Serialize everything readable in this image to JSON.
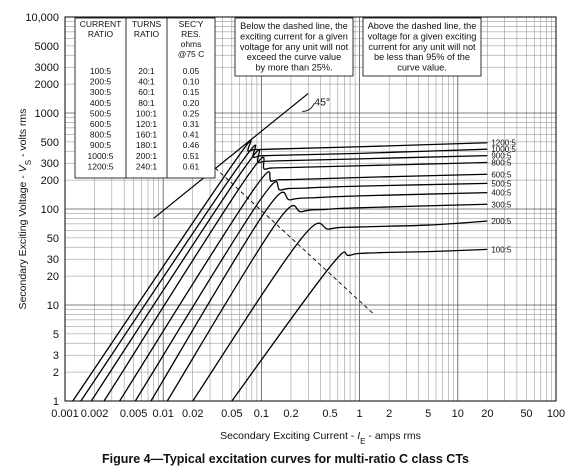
{
  "chart_data": {
    "type": "line",
    "xlabel_prefix": "Secondary Exciting Current - ",
    "xlabel_var": "I",
    "xlabel_sub": "E",
    "xlabel_suffix": " - amps rms",
    "ylabel_prefix": "Secondary Exciting Voltage - ",
    "ylabel_var": "V",
    "ylabel_sub": "S",
    "ylabel_suffix": " - volts rms",
    "xscale": "log",
    "yscale": "log",
    "xlim": [
      0.001,
      100
    ],
    "ylim": [
      1,
      10000
    ],
    "grid": true,
    "x_ticks": [
      {
        "v": 0.001,
        "t": "0.001"
      },
      {
        "v": 0.002,
        "t": "0.002"
      },
      {
        "v": 0.005,
        "t": "0.005"
      },
      {
        "v": 0.01,
        "t": "0.01"
      },
      {
        "v": 0.02,
        "t": "0.02"
      },
      {
        "v": 0.05,
        "t": "0.05"
      },
      {
        "v": 0.1,
        "t": "0.1"
      },
      {
        "v": 0.2,
        "t": "0.2"
      },
      {
        "v": 0.5,
        "t": "0.5"
      },
      {
        "v": 1,
        "t": "1"
      },
      {
        "v": 2,
        "t": "2"
      },
      {
        "v": 5,
        "t": "5"
      },
      {
        "v": 10,
        "t": "10"
      },
      {
        "v": 20,
        "t": "20"
      },
      {
        "v": 50,
        "t": "50"
      },
      {
        "v": 100,
        "t": "100"
      }
    ],
    "y_ticks": [
      {
        "v": 1,
        "t": "1"
      },
      {
        "v": 2,
        "t": "2"
      },
      {
        "v": 3,
        "t": "3"
      },
      {
        "v": 5,
        "t": "5"
      },
      {
        "v": 10,
        "t": "10"
      },
      {
        "v": 20,
        "t": "20"
      },
      {
        "v": 30,
        "t": "30"
      },
      {
        "v": 50,
        "t": "50"
      },
      {
        "v": 100,
        "t": "100"
      },
      {
        "v": 200,
        "t": "200"
      },
      {
        "v": 300,
        "t": "300"
      },
      {
        "v": 500,
        "t": "500"
      },
      {
        "v": 1000,
        "t": "1000"
      },
      {
        "v": 2000,
        "t": "2000"
      },
      {
        "v": 3000,
        "t": "3000"
      },
      {
        "v": 5000,
        "t": "5000"
      },
      {
        "v": 10000,
        "t": "10,000"
      }
    ],
    "series": [
      {
        "name": "1200:5",
        "points": [
          [
            0.0012,
            1
          ],
          [
            0.052,
            300
          ],
          [
            0.075,
            400
          ],
          [
            0.12,
            420
          ],
          [
            1,
            445
          ],
          [
            20,
            490
          ]
        ]
      },
      {
        "name": "1000:5",
        "points": [
          [
            0.00145,
            1
          ],
          [
            0.058,
            275
          ],
          [
            0.085,
            345
          ],
          [
            0.14,
            362
          ],
          [
            1,
            380
          ],
          [
            20,
            420
          ]
        ]
      },
      {
        "name": "900:5",
        "points": [
          [
            0.00185,
            1
          ],
          [
            0.064,
            250
          ],
          [
            0.095,
            305
          ],
          [
            0.16,
            318
          ],
          [
            1,
            333
          ],
          [
            20,
            360
          ]
        ]
      },
      {
        "name": "800:5",
        "points": [
          [
            0.0025,
            1
          ],
          [
            0.07,
            210
          ],
          [
            0.11,
            260
          ],
          [
            0.18,
            270
          ],
          [
            1,
            282
          ],
          [
            20,
            305
          ]
        ]
      },
      {
        "name": "600:5",
        "points": [
          [
            0.0036,
            1
          ],
          [
            0.08,
            150
          ],
          [
            0.13,
            195
          ],
          [
            0.22,
            203
          ],
          [
            1,
            213
          ],
          [
            20,
            230
          ]
        ]
      },
      {
        "name": "500:5",
        "points": [
          [
            0.0052,
            1
          ],
          [
            0.095,
            120
          ],
          [
            0.16,
            158
          ],
          [
            0.28,
            165
          ],
          [
            1,
            173
          ],
          [
            20,
            185
          ]
        ]
      },
      {
        "name": "400:5",
        "points": [
          [
            0.0075,
            1
          ],
          [
            0.11,
            95
          ],
          [
            0.2,
            125
          ],
          [
            0.35,
            131
          ],
          [
            1,
            137
          ],
          [
            20,
            148
          ]
        ]
      },
      {
        "name": "300:5",
        "points": [
          [
            0.011,
            1
          ],
          [
            0.14,
            70
          ],
          [
            0.26,
            94
          ],
          [
            0.45,
            99
          ],
          [
            1,
            103
          ],
          [
            20,
            112
          ]
        ]
      },
      {
        "name": "200:5",
        "points": [
          [
            0.02,
            1
          ],
          [
            0.25,
            48
          ],
          [
            0.5,
            62
          ],
          [
            1,
            65
          ],
          [
            5,
            68
          ],
          [
            20,
            75
          ]
        ]
      },
      {
        "name": "100:5",
        "points": [
          [
            0.05,
            1
          ],
          [
            0.5,
            25
          ],
          [
            0.8,
            33
          ],
          [
            1.5,
            35
          ],
          [
            5,
            36
          ],
          [
            20,
            38
          ]
        ]
      }
    ],
    "knee_line": {
      "points": [
        [
          0.03,
          300
        ],
        [
          1.4,
          8
        ]
      ]
    },
    "reference_45": {
      "label": "45°",
      "points": [
        [
          0.008,
          80
        ],
        [
          0.3,
          1600
        ]
      ]
    },
    "ratio_table": {
      "headers": [
        [
          "CURRENT",
          "RATIO"
        ],
        [
          "TURNS",
          "RATIO"
        ],
        [
          "SEC'Y",
          "RES.",
          "ohms",
          "@75 C"
        ]
      ],
      "rows": [
        [
          "100:5",
          "20:1",
          "0.05"
        ],
        [
          "200:5",
          "40:1",
          "0.10"
        ],
        [
          "300:5",
          "60:1",
          "0.15"
        ],
        [
          "400:5",
          "80:1",
          "0.20"
        ],
        [
          "500:5",
          "100:1",
          "0.25"
        ],
        [
          "600:5",
          "120:1",
          "0.31"
        ],
        [
          "800:5",
          "160:1",
          "0.41"
        ],
        [
          "900:5",
          "180:1",
          "0.46"
        ],
        [
          "1000:5",
          "200:1",
          "0.51"
        ],
        [
          "1200:5",
          "240:1",
          "0.61"
        ]
      ]
    },
    "annotations": [
      [
        "Below the dashed line, the",
        "exciting current for a given",
        "voltage for any unit will not",
        "exceed the curve value",
        "by more than 25%."
      ],
      [
        "Above the dashed line, the",
        "voltage for a given exciting",
        "current for any unit will not",
        "be less than 95% of the",
        "curve value."
      ]
    ]
  },
  "caption": "Figure 4—Typical excitation curves for multi-ratio C class CTs"
}
